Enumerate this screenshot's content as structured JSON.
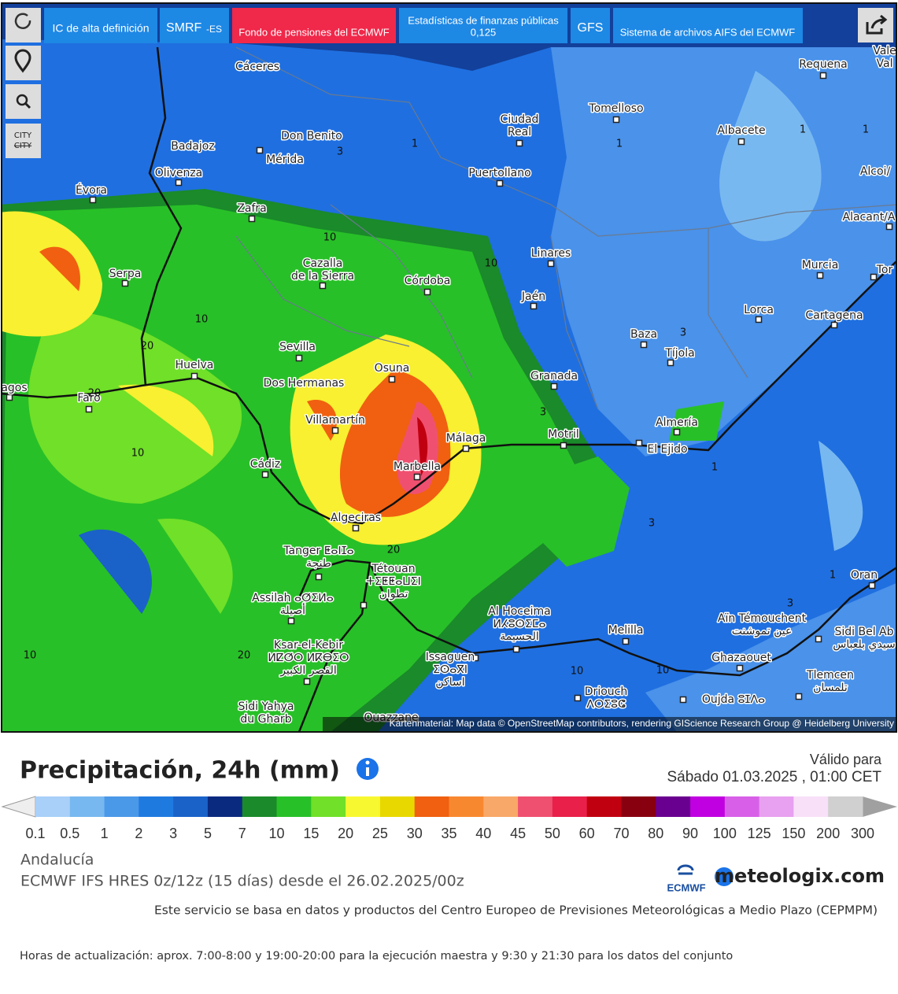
{
  "toolbar": {
    "hd": "IC de alta definición",
    "smrf": "SMRF",
    "smrf_suffix": "-ES",
    "pension": "Fondo de pensiones del ECMWF",
    "stats": "Estadísticas de finanzas públicas",
    "stats_res": "0,125",
    "gfs": "GFS",
    "aifs": "Sistema de archivos AIFS del ECMWF",
    "city": "CITY",
    "city_struck": "CITY"
  },
  "map": {
    "cities": [
      [
        "Cáceres"
      ],
      [
        "Badajoz"
      ],
      [
        "Don Benito"
      ],
      [
        "Mérida"
      ],
      [
        "Olivenza"
      ],
      [
        "Évora"
      ],
      [
        "Zafra"
      ],
      [
        "Ciudad",
        "Real"
      ],
      [
        "Tomelloso"
      ],
      [
        "Puertollano"
      ],
      [
        "Albacete"
      ],
      [
        "Requena"
      ],
      [
        "Vale",
        "Val"
      ],
      [
        "Alcoi/"
      ],
      [
        "Alacant/A"
      ],
      [
        "Linares"
      ],
      [
        "Murcia"
      ],
      [
        "Tor"
      ],
      [
        "Cazalla",
        "de la Sierra"
      ],
      [
        "Córdoba"
      ],
      [
        "Jaén"
      ],
      [
        "Serpa"
      ],
      [
        "Lorca"
      ],
      [
        "Cartagena"
      ],
      [
        "Baza"
      ],
      [
        "Tíjola"
      ],
      [
        "Sevilla"
      ],
      [
        "Huelva"
      ],
      [
        "Osuna"
      ],
      [
        "Granada"
      ],
      [
        "Dos Hermanas"
      ],
      [
        "agos"
      ],
      [
        "Faro"
      ],
      [
        "Villamartín"
      ],
      [
        "Málaga"
      ],
      [
        "Motril"
      ],
      [
        "Almería"
      ],
      [
        "El Ejido"
      ],
      [
        "Cádiz"
      ],
      [
        "Marbella"
      ],
      [
        "Algeciras"
      ],
      [
        "Tanger ⵟⴰⵏⵊⴰ",
        "طنجة"
      ],
      [
        "Tétouan",
        "ⵜⵉⵟⵟⴰⵡⵉⵏ",
        "تطوان"
      ],
      [
        "Assilah ⴰⵚⵉⵍⴰ",
        "أصيلة"
      ],
      [
        "Al Hoceima",
        "ⵍⵃⵓⵙⵉⵎⴰ",
        "الحسيمة"
      ],
      [
        "Oran"
      ],
      [
        "Aïn Témouchent",
        "عين تموشنت"
      ],
      [
        "Melilla"
      ],
      [
        "Sidi Bel Ab",
        "سيدي بلعباس"
      ],
      [
        "Ksar-el-Kebir",
        "ⵍⵇⵚⵔ ⵍⴽⴱⵉⵔ",
        "القصر الكبير"
      ],
      [
        "Issaguen",
        "ⵉⵙⴰⴳⵏ",
        "اساكن"
      ],
      [
        "Ghazaouet"
      ],
      [
        "Tlemcen",
        "تلمسان"
      ],
      [
        "Driouch",
        "ⴷⵔⵉⵓⵛ"
      ],
      [
        "Oujda ⵓⵊⴷⴰ"
      ],
      [
        "Sidi Yahya",
        "du Gharb"
      ],
      [
        "Ouazzane"
      ]
    ],
    "contours": [
      "3",
      "1",
      "1",
      "1",
      "1",
      "10",
      "10",
      "10",
      "20",
      "20",
      "10",
      "3",
      "3",
      "1",
      "3",
      "20",
      "1",
      "3",
      "10",
      "20",
      "10",
      "10"
    ],
    "attribution": "Kartenmaterial: Map data © OpenStreetMap contributors, rendering GIScience Research Group @ Heidelberg University"
  },
  "legend": {
    "title": "Precipitación, 24h (mm)",
    "valid_label": "Válido para",
    "valid_date": "Sábado 01.03.2025 , 01:00 CET",
    "colors": [
      "#a8d0f8",
      "#78b8f0",
      "#4a98e8",
      "#1f7ae0",
      "#1a62c8",
      "#0a2a80",
      "#1a8a2a",
      "#28c028",
      "#70e028",
      "#f8f830",
      "#e8d800",
      "#f06010",
      "#f88830",
      "#f8a868",
      "#f05070",
      "#e8204a",
      "#c00010",
      "#880010",
      "#6a0090",
      "#c000e0",
      "#d860e8",
      "#e8a0f0",
      "#f8e0f8",
      "#d0d0d0"
    ],
    "labels": [
      "0.1",
      "0.5",
      "1",
      "2",
      "3",
      "5",
      "7",
      "10",
      "15",
      "20",
      "25",
      "30",
      "35",
      "40",
      "45",
      "50",
      "60",
      "70",
      "80",
      "90",
      "100",
      "125",
      "150",
      "200",
      "300"
    ]
  },
  "footer": {
    "region": "Andalucía",
    "model": "ECMWF IFS HRES 0z/12z (15 días) desde el 26.02.2025/00z",
    "ecmwf_logo": "ECMWF",
    "brand": "meteologix.com",
    "service": "Este servicio se basa en datos y productos del Centro Europeo de Previsiones Meteorológicas a Medio Plazo (CEPMPM)",
    "update": "Horas de actualización: aprox. 7:00-8:00 y 19:00-20:00 para la ejecución maestra y 9:30 y 21:30 para los datos del conjunto"
  }
}
